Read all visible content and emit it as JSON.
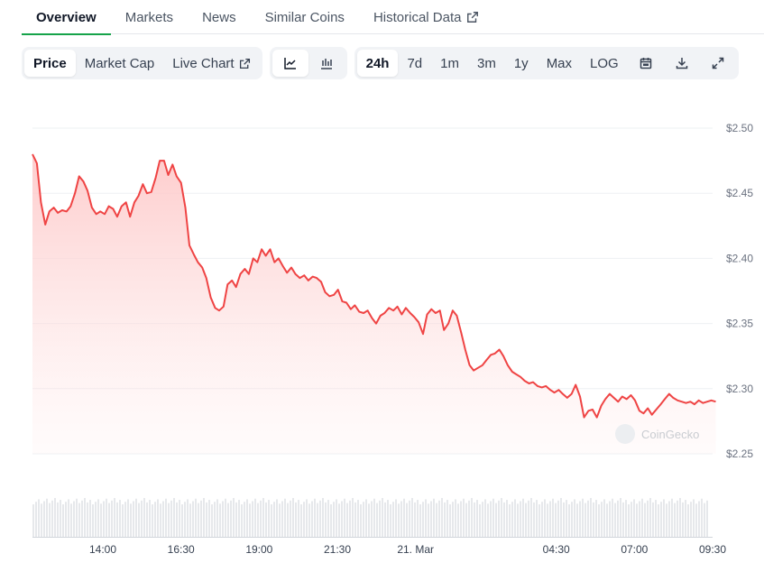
{
  "tabs": [
    {
      "label": "Overview",
      "active": true
    },
    {
      "label": "Markets"
    },
    {
      "label": "News"
    },
    {
      "label": "Similar Coins"
    },
    {
      "label": "Historical Data",
      "external": true
    }
  ],
  "toolbar": {
    "metrics": [
      {
        "label": "Price",
        "active": true
      },
      {
        "label": "Market Cap"
      },
      {
        "label": "Live Chart",
        "external": true
      }
    ],
    "chart_types": [
      {
        "icon": "line-chart-icon",
        "active": true
      },
      {
        "icon": "candlestick-chart-icon"
      }
    ],
    "ranges": [
      {
        "label": "24h",
        "active": true
      },
      {
        "label": "7d"
      },
      {
        "label": "1m"
      },
      {
        "label": "3m"
      },
      {
        "label": "1y"
      },
      {
        "label": "Max"
      },
      {
        "label": "LOG"
      }
    ],
    "tools": [
      "calendar-icon",
      "download-icon",
      "fullscreen-icon"
    ]
  },
  "watermark": "CoinGecko",
  "colors": {
    "line": "#ef4444",
    "fill_top": "#fecaca",
    "accent": "#16a34a",
    "volume": "#e5e7eb"
  },
  "chart_data": {
    "type": "area",
    "title": "",
    "xlabel": "",
    "ylabel": "",
    "y_ticks": [
      2.5,
      2.45,
      2.4,
      2.35,
      2.3,
      2.25
    ],
    "y_tick_labels": [
      "$2.50",
      "$2.45",
      "$2.40",
      "$2.35",
      "$2.30",
      "$2.25"
    ],
    "ylim": [
      2.25,
      2.5
    ],
    "x_range_hours": [
      11.75,
      33.5
    ],
    "x_ticks": [
      {
        "label": "14:00",
        "t": 14.0
      },
      {
        "label": "16:30",
        "t": 16.5
      },
      {
        "label": "19:00",
        "t": 19.0
      },
      {
        "label": "21:30",
        "t": 21.5
      },
      {
        "label": "21. Mar",
        "t": 24.0
      },
      {
        "label": "04:30",
        "t": 28.5
      },
      {
        "label": "07:00",
        "t": 31.0
      },
      {
        "label": "09:30",
        "t": 33.5
      }
    ],
    "grid": true,
    "series": [
      {
        "x": [
          11.75,
          11.89,
          12.02,
          12.16,
          12.29,
          12.43,
          12.56,
          12.7,
          12.84,
          12.97,
          13.11,
          13.24,
          13.38,
          13.51,
          13.65,
          13.79,
          13.92,
          14.06,
          14.19,
          14.33,
          14.46,
          14.6,
          14.74,
          14.87,
          15.01,
          15.14,
          15.28,
          15.41,
          15.55,
          15.69,
          15.82,
          15.96,
          16.09,
          16.23,
          16.36,
          16.5,
          16.64,
          16.77,
          16.91,
          17.04,
          17.18,
          17.31,
          17.45,
          17.59,
          17.72,
          17.86,
          17.99,
          18.13,
          18.26,
          18.4,
          18.54,
          18.67,
          18.81,
          18.94,
          19.08,
          19.21,
          19.35,
          19.49,
          19.62,
          19.76,
          19.89,
          20.03,
          20.16,
          20.3,
          20.44,
          20.57,
          20.71,
          20.84,
          20.98,
          21.11,
          21.25,
          21.39,
          21.52,
          21.66,
          21.79,
          21.93,
          22.06,
          22.2,
          22.34,
          22.47,
          22.61,
          22.74,
          22.88,
          23.01,
          23.15,
          23.29,
          23.42,
          23.56,
          23.69,
          23.83,
          23.96,
          24.1,
          24.24,
          24.37,
          24.51,
          24.64,
          24.78,
          24.91,
          25.05,
          25.19,
          25.32,
          25.46,
          25.59,
          25.73,
          25.86,
          26.0,
          26.14,
          26.27,
          26.41,
          26.54,
          26.68,
          26.81,
          26.95,
          27.09,
          27.22,
          27.36,
          27.49,
          27.63,
          27.76,
          27.9,
          28.04,
          28.17,
          28.31,
          28.44,
          28.58,
          28.71,
          28.85,
          28.99,
          29.12,
          29.26,
          29.39,
          29.53,
          29.66,
          29.8,
          29.94,
          30.07,
          30.21,
          30.34,
          30.48,
          30.61,
          30.75,
          30.89,
          31.02,
          31.16,
          31.29,
          31.43,
          31.56,
          31.7,
          31.84,
          31.97,
          32.11,
          32.24,
          32.38,
          32.51,
          32.65,
          32.79,
          32.92,
          33.06,
          33.19,
          33.33,
          33.46,
          33.6
        ],
        "y": [
          2.48,
          2.473,
          2.443,
          2.426,
          2.436,
          2.439,
          2.435,
          2.437,
          2.436,
          2.44,
          2.45,
          2.463,
          2.459,
          2.452,
          2.439,
          2.434,
          2.436,
          2.434,
          2.44,
          2.438,
          2.432,
          2.44,
          2.443,
          2.432,
          2.443,
          2.448,
          2.457,
          2.45,
          2.451,
          2.462,
          2.475,
          2.475,
          2.464,
          2.472,
          2.463,
          2.458,
          2.439,
          2.41,
          2.403,
          2.397,
          2.393,
          2.385,
          2.37,
          2.362,
          2.36,
          2.363,
          2.38,
          2.383,
          2.378,
          2.388,
          2.392,
          2.388,
          2.4,
          2.397,
          2.407,
          2.402,
          2.407,
          2.397,
          2.4,
          2.394,
          2.389,
          2.393,
          2.388,
          2.385,
          2.387,
          2.383,
          2.386,
          2.385,
          2.382,
          2.374,
          2.371,
          2.372,
          2.376,
          2.367,
          2.366,
          2.361,
          2.364,
          2.359,
          2.358,
          2.36,
          2.354,
          2.35,
          2.356,
          2.358,
          2.362,
          2.36,
          2.363,
          2.357,
          2.362,
          2.358,
          2.355,
          2.351,
          2.342,
          2.357,
          2.361,
          2.358,
          2.36,
          2.345,
          2.35,
          2.36,
          2.356,
          2.343,
          2.33,
          2.318,
          2.314,
          2.316,
          2.318,
          2.322,
          2.326,
          2.327,
          2.33,
          2.325,
          2.318,
          2.313,
          2.311,
          2.309,
          2.306,
          2.304,
          2.305,
          2.302,
          2.301,
          2.302,
          2.299,
          2.297,
          2.299,
          2.296,
          2.293,
          2.296,
          2.303,
          2.294,
          2.278,
          2.283,
          2.284,
          2.278,
          2.287,
          2.292,
          2.296,
          2.293,
          2.29,
          2.294,
          2.292,
          2.295,
          2.291,
          2.283,
          2.281,
          2.285,
          2.28,
          2.284,
          2.288,
          2.292,
          2.296,
          2.293,
          2.291,
          2.29,
          2.289,
          2.29,
          2.288,
          2.291,
          2.289,
          2.29,
          2.291,
          2.29
        ]
      }
    ]
  }
}
